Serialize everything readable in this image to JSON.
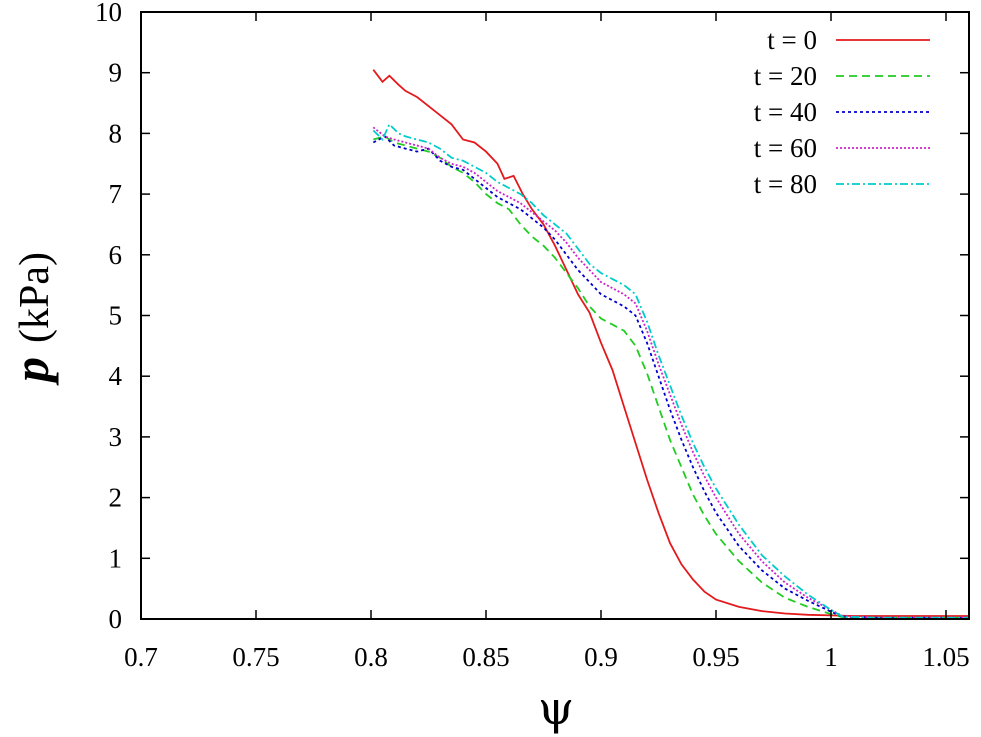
{
  "chart_data": {
    "type": "line",
    "xlabel": "ψ",
    "ylabel": {
      "symbol": "p",
      "unit": "(kPa)"
    },
    "xlim": [
      0.7,
      1.06
    ],
    "ylim": [
      0,
      10
    ],
    "xticks": [
      0.7,
      0.75,
      0.8,
      0.85,
      0.9,
      0.95,
      1,
      1.05
    ],
    "xtick_labels": [
      "0.7",
      "0.75",
      "0.8",
      "0.85",
      "0.9",
      "0.95",
      "1",
      "1.05"
    ],
    "yticks": [
      0,
      1,
      2,
      3,
      4,
      5,
      6,
      7,
      8,
      9,
      10
    ],
    "ytick_labels": [
      "0",
      "1",
      "2",
      "3",
      "4",
      "5",
      "6",
      "7",
      "8",
      "9",
      "10"
    ],
    "grid": false,
    "legend_position": "top-right",
    "series": [
      {
        "name": "t = 0",
        "color": "#e31a1c",
        "dash": "solid",
        "x": [
          0.801,
          0.805,
          0.808,
          0.812,
          0.815,
          0.82,
          0.825,
          0.83,
          0.835,
          0.84,
          0.845,
          0.85,
          0.855,
          0.858,
          0.862,
          0.866,
          0.87,
          0.875,
          0.88,
          0.885,
          0.89,
          0.895,
          0.9,
          0.905,
          0.91,
          0.915,
          0.92,
          0.925,
          0.93,
          0.935,
          0.94,
          0.945,
          0.95,
          0.96,
          0.97,
          0.98,
          0.99,
          1.0,
          1.01,
          1.03,
          1.06
        ],
        "y": [
          9.05,
          8.85,
          8.95,
          8.8,
          8.7,
          8.6,
          8.45,
          8.3,
          8.15,
          7.9,
          7.85,
          7.7,
          7.5,
          7.25,
          7.3,
          7.0,
          6.75,
          6.5,
          6.15,
          5.75,
          5.35,
          5.05,
          4.55,
          4.1,
          3.5,
          2.9,
          2.3,
          1.75,
          1.25,
          0.9,
          0.65,
          0.45,
          0.32,
          0.2,
          0.13,
          0.09,
          0.07,
          0.06,
          0.05,
          0.05,
          0.05
        ]
      },
      {
        "name": "t = 20",
        "color": "#22cc22",
        "dash": "8,5",
        "x": [
          0.801,
          0.806,
          0.81,
          0.815,
          0.82,
          0.825,
          0.83,
          0.835,
          0.84,
          0.845,
          0.85,
          0.855,
          0.86,
          0.865,
          0.87,
          0.875,
          0.88,
          0.885,
          0.89,
          0.895,
          0.9,
          0.905,
          0.91,
          0.915,
          0.92,
          0.925,
          0.93,
          0.935,
          0.94,
          0.945,
          0.95,
          0.96,
          0.97,
          0.98,
          0.99,
          1.0,
          1.005,
          1.02,
          1.06
        ],
        "y": [
          7.9,
          7.95,
          7.85,
          7.8,
          7.75,
          7.7,
          7.6,
          7.45,
          7.35,
          7.2,
          7.0,
          6.85,
          6.75,
          6.5,
          6.3,
          6.15,
          5.95,
          5.7,
          5.45,
          5.15,
          4.95,
          4.85,
          4.75,
          4.5,
          4.05,
          3.5,
          2.95,
          2.5,
          2.05,
          1.7,
          1.4,
          0.95,
          0.6,
          0.35,
          0.2,
          0.08,
          0.03,
          0.02,
          0.02
        ]
      },
      {
        "name": "t = 40",
        "color": "#0000cc",
        "dash": "3,3",
        "x": [
          0.801,
          0.806,
          0.81,
          0.815,
          0.82,
          0.825,
          0.83,
          0.835,
          0.84,
          0.845,
          0.85,
          0.855,
          0.86,
          0.865,
          0.87,
          0.875,
          0.88,
          0.885,
          0.89,
          0.895,
          0.9,
          0.905,
          0.91,
          0.915,
          0.92,
          0.925,
          0.93,
          0.935,
          0.94,
          0.945,
          0.95,
          0.96,
          0.97,
          0.98,
          0.99,
          1.0,
          1.005,
          1.02,
          1.06
        ],
        "y": [
          7.85,
          7.95,
          7.8,
          7.75,
          7.7,
          7.75,
          7.55,
          7.45,
          7.4,
          7.25,
          7.1,
          6.95,
          6.85,
          6.75,
          6.6,
          6.45,
          6.25,
          6.0,
          5.75,
          5.55,
          5.35,
          5.25,
          5.15,
          5.0,
          4.55,
          4.0,
          3.45,
          2.95,
          2.5,
          2.1,
          1.75,
          1.2,
          0.8,
          0.5,
          0.3,
          0.12,
          0.04,
          0.02,
          0.02
        ]
      },
      {
        "name": "t = 60",
        "color": "#cc22cc",
        "dash": "2,2",
        "x": [
          0.801,
          0.806,
          0.81,
          0.815,
          0.82,
          0.825,
          0.83,
          0.835,
          0.84,
          0.845,
          0.85,
          0.855,
          0.86,
          0.865,
          0.87,
          0.875,
          0.88,
          0.885,
          0.89,
          0.895,
          0.9,
          0.905,
          0.91,
          0.915,
          0.92,
          0.925,
          0.93,
          0.935,
          0.94,
          0.945,
          0.95,
          0.96,
          0.97,
          0.98,
          0.99,
          1.0,
          1.005,
          1.02,
          1.06
        ],
        "y": [
          8.1,
          7.95,
          7.9,
          7.85,
          7.8,
          7.75,
          7.6,
          7.5,
          7.45,
          7.35,
          7.2,
          7.05,
          6.95,
          6.85,
          6.7,
          6.55,
          6.4,
          6.2,
          5.95,
          5.75,
          5.55,
          5.45,
          5.35,
          5.2,
          4.75,
          4.2,
          3.7,
          3.2,
          2.75,
          2.35,
          2.0,
          1.4,
          0.95,
          0.6,
          0.35,
          0.15,
          0.05,
          0.02,
          0.02
        ]
      },
      {
        "name": "t = 80",
        "color": "#00cccc",
        "dash": "8,3,2,3",
        "x": [
          0.801,
          0.805,
          0.808,
          0.812,
          0.815,
          0.82,
          0.825,
          0.83,
          0.835,
          0.84,
          0.845,
          0.85,
          0.855,
          0.86,
          0.865,
          0.87,
          0.875,
          0.88,
          0.885,
          0.89,
          0.895,
          0.9,
          0.905,
          0.91,
          0.915,
          0.92,
          0.925,
          0.93,
          0.935,
          0.94,
          0.945,
          0.95,
          0.96,
          0.97,
          0.98,
          0.99,
          1.0,
          1.005,
          1.02,
          1.06
        ],
        "y": [
          8.05,
          7.9,
          8.15,
          8.0,
          7.95,
          7.9,
          7.85,
          7.75,
          7.6,
          7.55,
          7.45,
          7.35,
          7.2,
          7.1,
          7.0,
          6.85,
          6.65,
          6.5,
          6.35,
          6.1,
          5.85,
          5.7,
          5.6,
          5.5,
          5.35,
          4.9,
          4.35,
          3.85,
          3.35,
          2.9,
          2.5,
          2.15,
          1.55,
          1.05,
          0.7,
          0.4,
          0.15,
          0.04,
          0.02,
          0.02
        ]
      }
    ]
  }
}
